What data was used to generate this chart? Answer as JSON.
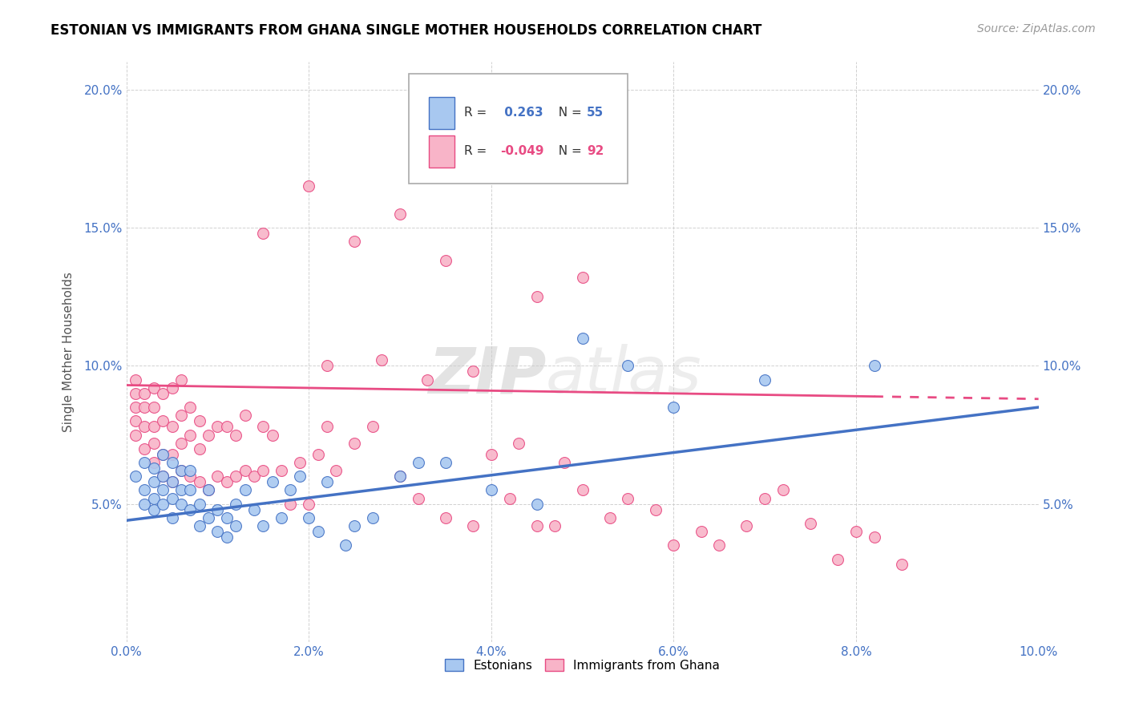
{
  "title": "ESTONIAN VS IMMIGRANTS FROM GHANA SINGLE MOTHER HOUSEHOLDS CORRELATION CHART",
  "source": "Source: ZipAtlas.com",
  "ylabel": "Single Mother Households",
  "xlim": [
    0.0,
    0.1
  ],
  "ylim": [
    0.0,
    0.21
  ],
  "xticks": [
    0.0,
    0.02,
    0.04,
    0.06,
    0.08,
    0.1
  ],
  "yticks": [
    0.0,
    0.05,
    0.1,
    0.15,
    0.2
  ],
  "xticklabels": [
    "0.0%",
    "2.0%",
    "4.0%",
    "6.0%",
    "8.0%",
    "10.0%"
  ],
  "yticklabels": [
    "",
    "5.0%",
    "10.0%",
    "15.0%",
    "20.0%"
  ],
  "blue_R": "0.263",
  "blue_N": "55",
  "pink_R": "-0.049",
  "pink_N": "92",
  "blue_color": "#a8c8f0",
  "pink_color": "#f8b4c8",
  "blue_line_color": "#4472C4",
  "pink_line_color": "#E84B83",
  "watermark_zip": "ZIP",
  "watermark_atlas": "atlas",
  "blue_x": [
    0.001,
    0.002,
    0.002,
    0.002,
    0.003,
    0.003,
    0.003,
    0.003,
    0.004,
    0.004,
    0.004,
    0.004,
    0.005,
    0.005,
    0.005,
    0.005,
    0.006,
    0.006,
    0.006,
    0.007,
    0.007,
    0.007,
    0.008,
    0.008,
    0.009,
    0.009,
    0.01,
    0.01,
    0.011,
    0.011,
    0.012,
    0.012,
    0.013,
    0.014,
    0.015,
    0.016,
    0.017,
    0.018,
    0.019,
    0.02,
    0.021,
    0.022,
    0.024,
    0.025,
    0.027,
    0.03,
    0.032,
    0.035,
    0.04,
    0.045,
    0.05,
    0.055,
    0.06,
    0.07,
    0.082
  ],
  "blue_y": [
    0.06,
    0.055,
    0.05,
    0.065,
    0.048,
    0.052,
    0.058,
    0.063,
    0.05,
    0.055,
    0.06,
    0.068,
    0.045,
    0.052,
    0.058,
    0.065,
    0.05,
    0.055,
    0.062,
    0.048,
    0.055,
    0.062,
    0.042,
    0.05,
    0.045,
    0.055,
    0.04,
    0.048,
    0.038,
    0.045,
    0.042,
    0.05,
    0.055,
    0.048,
    0.042,
    0.058,
    0.045,
    0.055,
    0.06,
    0.045,
    0.04,
    0.058,
    0.035,
    0.042,
    0.045,
    0.06,
    0.065,
    0.065,
    0.055,
    0.05,
    0.11,
    0.1,
    0.085,
    0.095,
    0.1
  ],
  "pink_x": [
    0.001,
    0.001,
    0.001,
    0.001,
    0.001,
    0.002,
    0.002,
    0.002,
    0.002,
    0.003,
    0.003,
    0.003,
    0.003,
    0.003,
    0.004,
    0.004,
    0.004,
    0.004,
    0.005,
    0.005,
    0.005,
    0.005,
    0.006,
    0.006,
    0.006,
    0.006,
    0.007,
    0.007,
    0.007,
    0.008,
    0.008,
    0.008,
    0.009,
    0.009,
    0.01,
    0.01,
    0.011,
    0.011,
    0.012,
    0.012,
    0.013,
    0.013,
    0.014,
    0.015,
    0.015,
    0.016,
    0.017,
    0.018,
    0.019,
    0.02,
    0.021,
    0.022,
    0.023,
    0.025,
    0.027,
    0.03,
    0.032,
    0.035,
    0.038,
    0.04,
    0.042,
    0.043,
    0.045,
    0.047,
    0.048,
    0.05,
    0.053,
    0.055,
    0.058,
    0.06,
    0.063,
    0.065,
    0.068,
    0.07,
    0.072,
    0.075,
    0.078,
    0.08,
    0.082,
    0.085,
    0.04,
    0.03,
    0.025,
    0.02,
    0.015,
    0.035,
    0.045,
    0.05,
    0.022,
    0.028,
    0.033,
    0.038
  ],
  "pink_y": [
    0.075,
    0.08,
    0.085,
    0.09,
    0.095,
    0.07,
    0.078,
    0.085,
    0.09,
    0.065,
    0.072,
    0.078,
    0.085,
    0.092,
    0.06,
    0.068,
    0.08,
    0.09,
    0.058,
    0.068,
    0.078,
    0.092,
    0.062,
    0.072,
    0.082,
    0.095,
    0.06,
    0.075,
    0.085,
    0.058,
    0.07,
    0.08,
    0.055,
    0.075,
    0.06,
    0.078,
    0.058,
    0.078,
    0.06,
    0.075,
    0.062,
    0.082,
    0.06,
    0.062,
    0.078,
    0.075,
    0.062,
    0.05,
    0.065,
    0.05,
    0.068,
    0.078,
    0.062,
    0.072,
    0.078,
    0.06,
    0.052,
    0.045,
    0.042,
    0.068,
    0.052,
    0.072,
    0.042,
    0.042,
    0.065,
    0.055,
    0.045,
    0.052,
    0.048,
    0.035,
    0.04,
    0.035,
    0.042,
    0.052,
    0.055,
    0.043,
    0.03,
    0.04,
    0.038,
    0.028,
    0.185,
    0.155,
    0.145,
    0.165,
    0.148,
    0.138,
    0.125,
    0.132,
    0.1,
    0.102,
    0.095,
    0.098
  ]
}
